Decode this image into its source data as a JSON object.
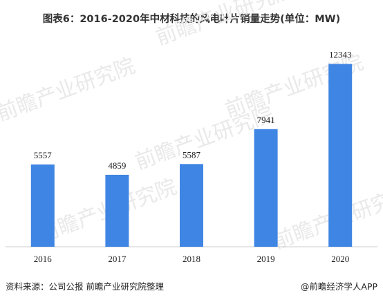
{
  "title": "图表6：2016-2020年中材科技的风电叶片销量走势(单位：MW)",
  "source": "资料来源：公司公报 前瞻产业研究院整理",
  "brand": "@前瞻经济学人APP",
  "watermark": "前瞻产业研究院",
  "colors": {
    "bar": "#3f85e3",
    "axis": "#cccccc",
    "watermark": "#e9e9e9"
  },
  "chart_data": {
    "type": "bar",
    "title": "图表6：2016-2020年中材科技的风电叶片销量走势(单位：MW)",
    "xlabel": "",
    "ylabel": "",
    "categories": [
      "2016",
      "2017",
      "2018",
      "2019",
      "2020"
    ],
    "values": [
      5557,
      4859,
      5587,
      7941,
      12343
    ],
    "data_labels": [
      "5557",
      "4859",
      "5587",
      "7941",
      "12343"
    ],
    "ylim": [
      0,
      14000
    ],
    "grid": false,
    "legend": "none"
  }
}
